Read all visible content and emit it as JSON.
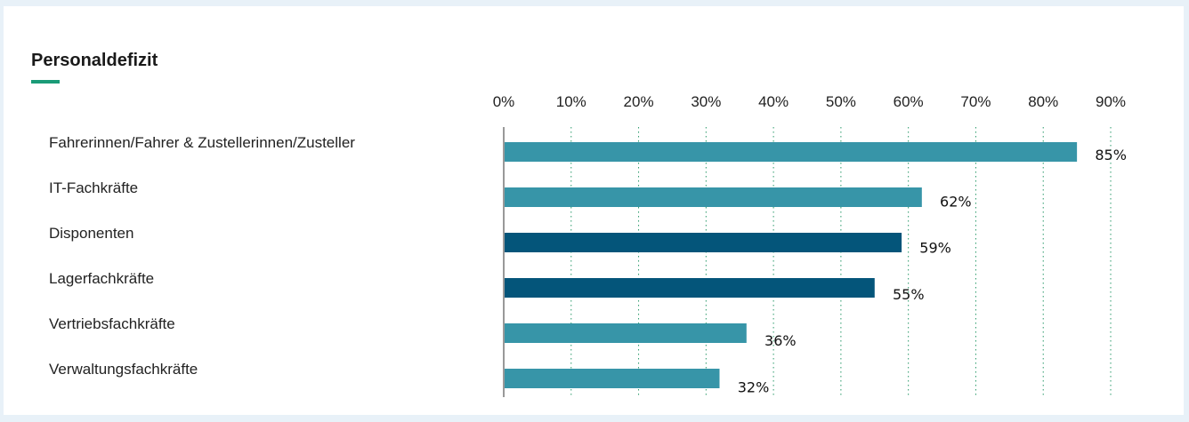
{
  "title": "Personaldefizit",
  "colors": {
    "accent_underline": "#1a9b77",
    "bar_light": "#3795a8",
    "bar_dark": "#04557a",
    "grid": "#2a9a6a"
  },
  "chart_data": {
    "type": "bar",
    "orientation": "horizontal",
    "title": "Personaldefizit",
    "categories": [
      "Fahrerinnen/Fahrer & Zustellerinnen/Zusteller",
      "IT-Fachkräfte",
      "Disponenten",
      "Lagerfachkräfte",
      "Vertriebsfachkräfte",
      "Verwaltungsfachkräfte"
    ],
    "values": [
      85,
      62,
      59,
      55,
      36,
      32
    ],
    "value_labels": [
      "85%",
      "62%",
      "59%",
      "55%",
      "36%",
      "32%"
    ],
    "bar_colors": [
      "#3795a8",
      "#3795a8",
      "#04557a",
      "#04557a",
      "#3795a8",
      "#3795a8"
    ],
    "xlim": [
      0,
      90
    ],
    "xticks": [
      0,
      10,
      20,
      30,
      40,
      50,
      60,
      70,
      80,
      90
    ],
    "xtick_labels": [
      "0%",
      "10%",
      "20%",
      "30%",
      "40%",
      "50%",
      "60%",
      "70%",
      "80%",
      "90%"
    ],
    "axis_position": "top",
    "grid": "vertical dotted",
    "xlabel": "",
    "ylabel": ""
  }
}
